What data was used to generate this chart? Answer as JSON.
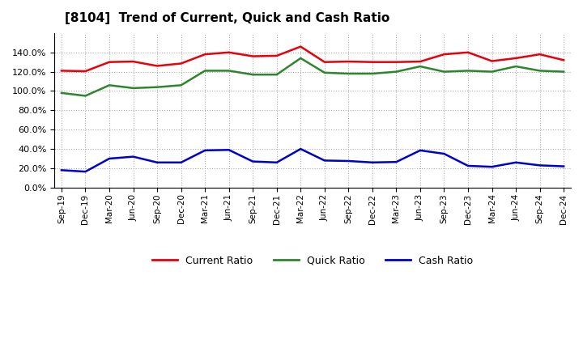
{
  "title": "[8104]  Trend of Current, Quick and Cash Ratio",
  "x_labels": [
    "Sep-19",
    "Dec-19",
    "Mar-20",
    "Jun-20",
    "Sep-20",
    "Dec-20",
    "Mar-21",
    "Jun-21",
    "Sep-21",
    "Dec-21",
    "Mar-22",
    "Jun-22",
    "Sep-22",
    "Dec-22",
    "Mar-23",
    "Jun-23",
    "Sep-23",
    "Dec-23",
    "Mar-24",
    "Jun-24",
    "Sep-24",
    "Dec-24"
  ],
  "current_ratio": [
    121.0,
    120.5,
    130.0,
    130.5,
    126.0,
    128.5,
    138.0,
    140.0,
    136.0,
    136.5,
    146.0,
    130.0,
    130.5,
    130.0,
    130.0,
    130.5,
    138.0,
    140.0,
    131.0,
    134.0,
    138.0,
    132.0
  ],
  "quick_ratio": [
    98.0,
    95.0,
    106.0,
    103.0,
    104.0,
    106.0,
    121.0,
    121.0,
    117.0,
    117.0,
    134.0,
    119.0,
    118.0,
    118.0,
    120.0,
    125.5,
    120.0,
    121.0,
    120.0,
    125.5,
    121.0,
    120.0
  ],
  "cash_ratio": [
    18.0,
    16.5,
    30.0,
    32.0,
    26.0,
    26.0,
    38.5,
    39.0,
    27.0,
    26.0,
    40.0,
    28.0,
    27.5,
    26.0,
    26.5,
    38.5,
    35.0,
    22.5,
    21.5,
    26.0,
    23.0,
    22.0
  ],
  "current_color": "#e8000d",
  "quick_color": "#2d862d",
  "cash_color": "#0000cc",
  "ylim": [
    0,
    160
  ],
  "yticks": [
    0,
    20,
    40,
    60,
    80,
    100,
    120,
    140
  ],
  "background_color": "#ffffff",
  "plot_bg_color": "#ffffff",
  "grid_color": "#aaaaaa",
  "legend_labels": [
    "Current Ratio",
    "Quick Ratio",
    "Cash Ratio"
  ]
}
